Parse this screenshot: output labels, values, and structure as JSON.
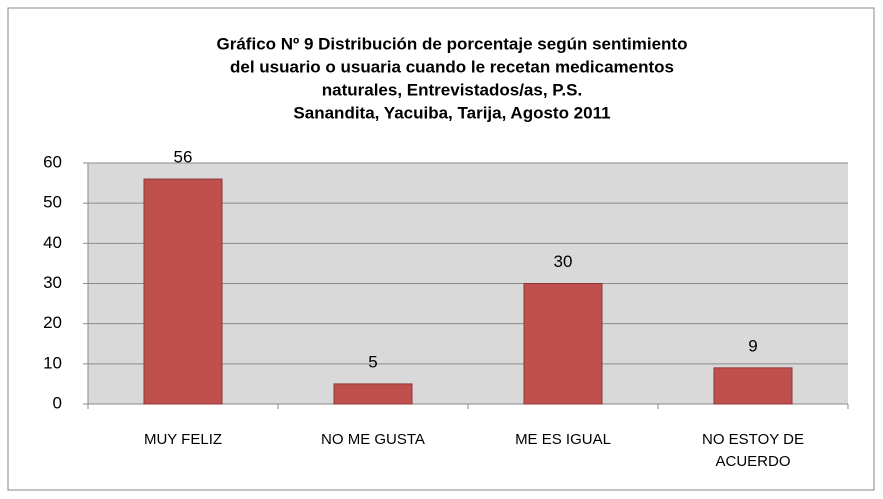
{
  "chart_data": {
    "type": "bar",
    "title": [
      "Gráfico Nº 9 Distribución de porcentaje  según sentimiento",
      "del usuario o usuaria cuando le recetan medicamentos",
      "naturales, Entrevistados/as,  P.S.",
      "Sanandita, Yacuiba, Tarija, Agosto 2011"
    ],
    "categories": [
      "MUY FELIZ",
      "NO ME GUSTA",
      "ME ES IGUAL",
      "NO ESTOY DE ACUERDO"
    ],
    "values": [
      56,
      5,
      30,
      9
    ],
    "color": "#c0504d",
    "ylim": [
      0,
      60
    ],
    "yticks": [
      0,
      10,
      20,
      30,
      40,
      50,
      60
    ],
    "grid": true
  }
}
